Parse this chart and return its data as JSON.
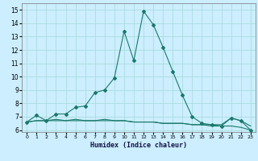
{
  "title": "",
  "xlabel": "Humidex (Indice chaleur)",
  "bg_color": "#cceeff",
  "grid_color": "#aadddd",
  "line_color": "#1a7a6a",
  "xlim": [
    -0.5,
    23.5
  ],
  "ylim": [
    5.85,
    15.5
  ],
  "xticks": [
    0,
    1,
    2,
    3,
    4,
    5,
    6,
    7,
    8,
    9,
    10,
    11,
    12,
    13,
    14,
    15,
    16,
    17,
    18,
    19,
    20,
    21,
    22,
    23
  ],
  "yticks": [
    6,
    7,
    8,
    9,
    10,
    11,
    12,
    13,
    14,
    15
  ],
  "series1_x": [
    0,
    1,
    2,
    3,
    4,
    5,
    6,
    7,
    8,
    9,
    10,
    11,
    12,
    13,
    14,
    15,
    16,
    17,
    18,
    19,
    20,
    21,
    22,
    23
  ],
  "series1_y": [
    6.6,
    7.1,
    6.7,
    7.2,
    7.2,
    7.7,
    7.8,
    8.8,
    9.0,
    9.9,
    13.4,
    11.2,
    14.9,
    13.9,
    12.2,
    10.4,
    8.6,
    7.0,
    6.5,
    6.4,
    6.3,
    6.9,
    6.7,
    6.0
  ],
  "series2_x": [
    0,
    1,
    2,
    3,
    4,
    5,
    6,
    7,
    8,
    9,
    10,
    11,
    12,
    13,
    14,
    15,
    16,
    17,
    18,
    19,
    20,
    21,
    22,
    23
  ],
  "series2_y": [
    6.6,
    6.7,
    6.7,
    6.7,
    6.7,
    6.7,
    6.7,
    6.7,
    6.7,
    6.7,
    6.7,
    6.6,
    6.6,
    6.6,
    6.5,
    6.5,
    6.5,
    6.4,
    6.4,
    6.3,
    6.3,
    6.3,
    6.2,
    6.0
  ],
  "series3_x": [
    0,
    1,
    2,
    3,
    4,
    5,
    6,
    7,
    8,
    9,
    10,
    11,
    12,
    13,
    14,
    15,
    16,
    17,
    18,
    19,
    20,
    21,
    22,
    23
  ],
  "series3_y": [
    6.6,
    6.7,
    6.7,
    6.8,
    6.7,
    6.8,
    6.7,
    6.7,
    6.8,
    6.7,
    6.7,
    6.6,
    6.6,
    6.6,
    6.5,
    6.5,
    6.5,
    6.4,
    6.4,
    6.4,
    6.4,
    6.9,
    6.7,
    6.3
  ],
  "marker_size": 2.0,
  "linewidth": 0.8
}
